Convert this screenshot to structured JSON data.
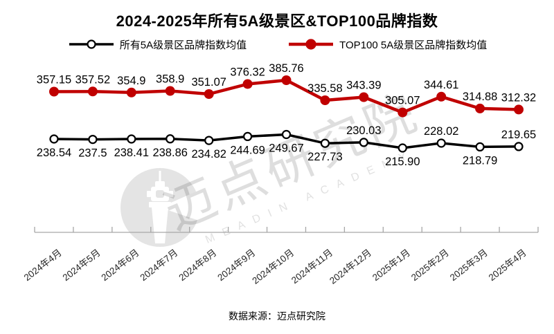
{
  "title": "2024-2025年所有5A级景区&TOP100品牌指数",
  "legend": [
    {
      "label": "所有5A级景区品牌指数均值",
      "color": "#000000",
      "marker": "open"
    },
    {
      "label": "TOP100 5A级景区品牌指数均值",
      "color": "#C00000",
      "marker": "filled"
    }
  ],
  "chart_data": {
    "type": "line",
    "title": "2024-2025年所有5A级景区&TOP100品牌指数",
    "categories": [
      "2024年4月",
      "2024年5月",
      "2024年6月",
      "2024年7月",
      "2024年8月",
      "2024年9月",
      "2024年10月",
      "2024年11月",
      "2024年12月",
      "2025年1月",
      "2025年2月",
      "2025年3月",
      "2025年4月"
    ],
    "series": [
      {
        "name": "所有5A级景区品牌指数均值",
        "color": "#000000",
        "marker": "open-circle",
        "values": [
          238.54,
          237.5,
          238.41,
          238.86,
          234.82,
          244.69,
          249.67,
          227.73,
          230.03,
          215.9,
          228.02,
          218.79,
          219.65
        ],
        "labels": [
          "238.54",
          "237.5",
          "238.41",
          "238.86",
          "234.82",
          "244.69",
          "249.67",
          "227.73",
          "230.03",
          "215.90",
          "228.02",
          "218.79",
          "219.65"
        ],
        "label_positions": [
          "below",
          "below",
          "below",
          "below",
          "below",
          "below",
          "below",
          "below",
          "above",
          "below",
          "above",
          "below",
          "above"
        ]
      },
      {
        "name": "TOP100 5A级景区品牌指数均值",
        "color": "#C00000",
        "marker": "filled-circle",
        "values": [
          357.15,
          357.52,
          354.9,
          358.9,
          351.07,
          376.32,
          385.76,
          335.58,
          343.39,
          305.07,
          344.61,
          314.88,
          312.32
        ],
        "labels": [
          "357.15",
          "357.52",
          "354.9",
          "358.9",
          "351.07",
          "376.32",
          "385.76",
          "335.58",
          "343.39",
          "305.07",
          "344.61",
          "314.88",
          "312.32"
        ],
        "label_positions": [
          "above",
          "above",
          "above",
          "above",
          "above",
          "above",
          "above",
          "above",
          "above",
          "above",
          "above",
          "above",
          "above"
        ]
      }
    ],
    "xlabel": "",
    "ylabel": "",
    "ylim": [
      170,
      420
    ],
    "grid": false,
    "y_axis_visible": false,
    "legend_position": "top"
  },
  "watermark": {
    "cn": "迈点研究院",
    "en": "MEADIN ACADEMY",
    "logo": "tower-icon"
  },
  "footer": {
    "source": "数据来源：迈点研究院"
  },
  "colors": {
    "series_all": "#000000",
    "series_top100": "#C00000",
    "axis": "#A6A6A6",
    "data_label": "#000000",
    "x_label": "#262626",
    "footer_text": "#515A64",
    "watermark_fill": "#E4E4E4"
  }
}
